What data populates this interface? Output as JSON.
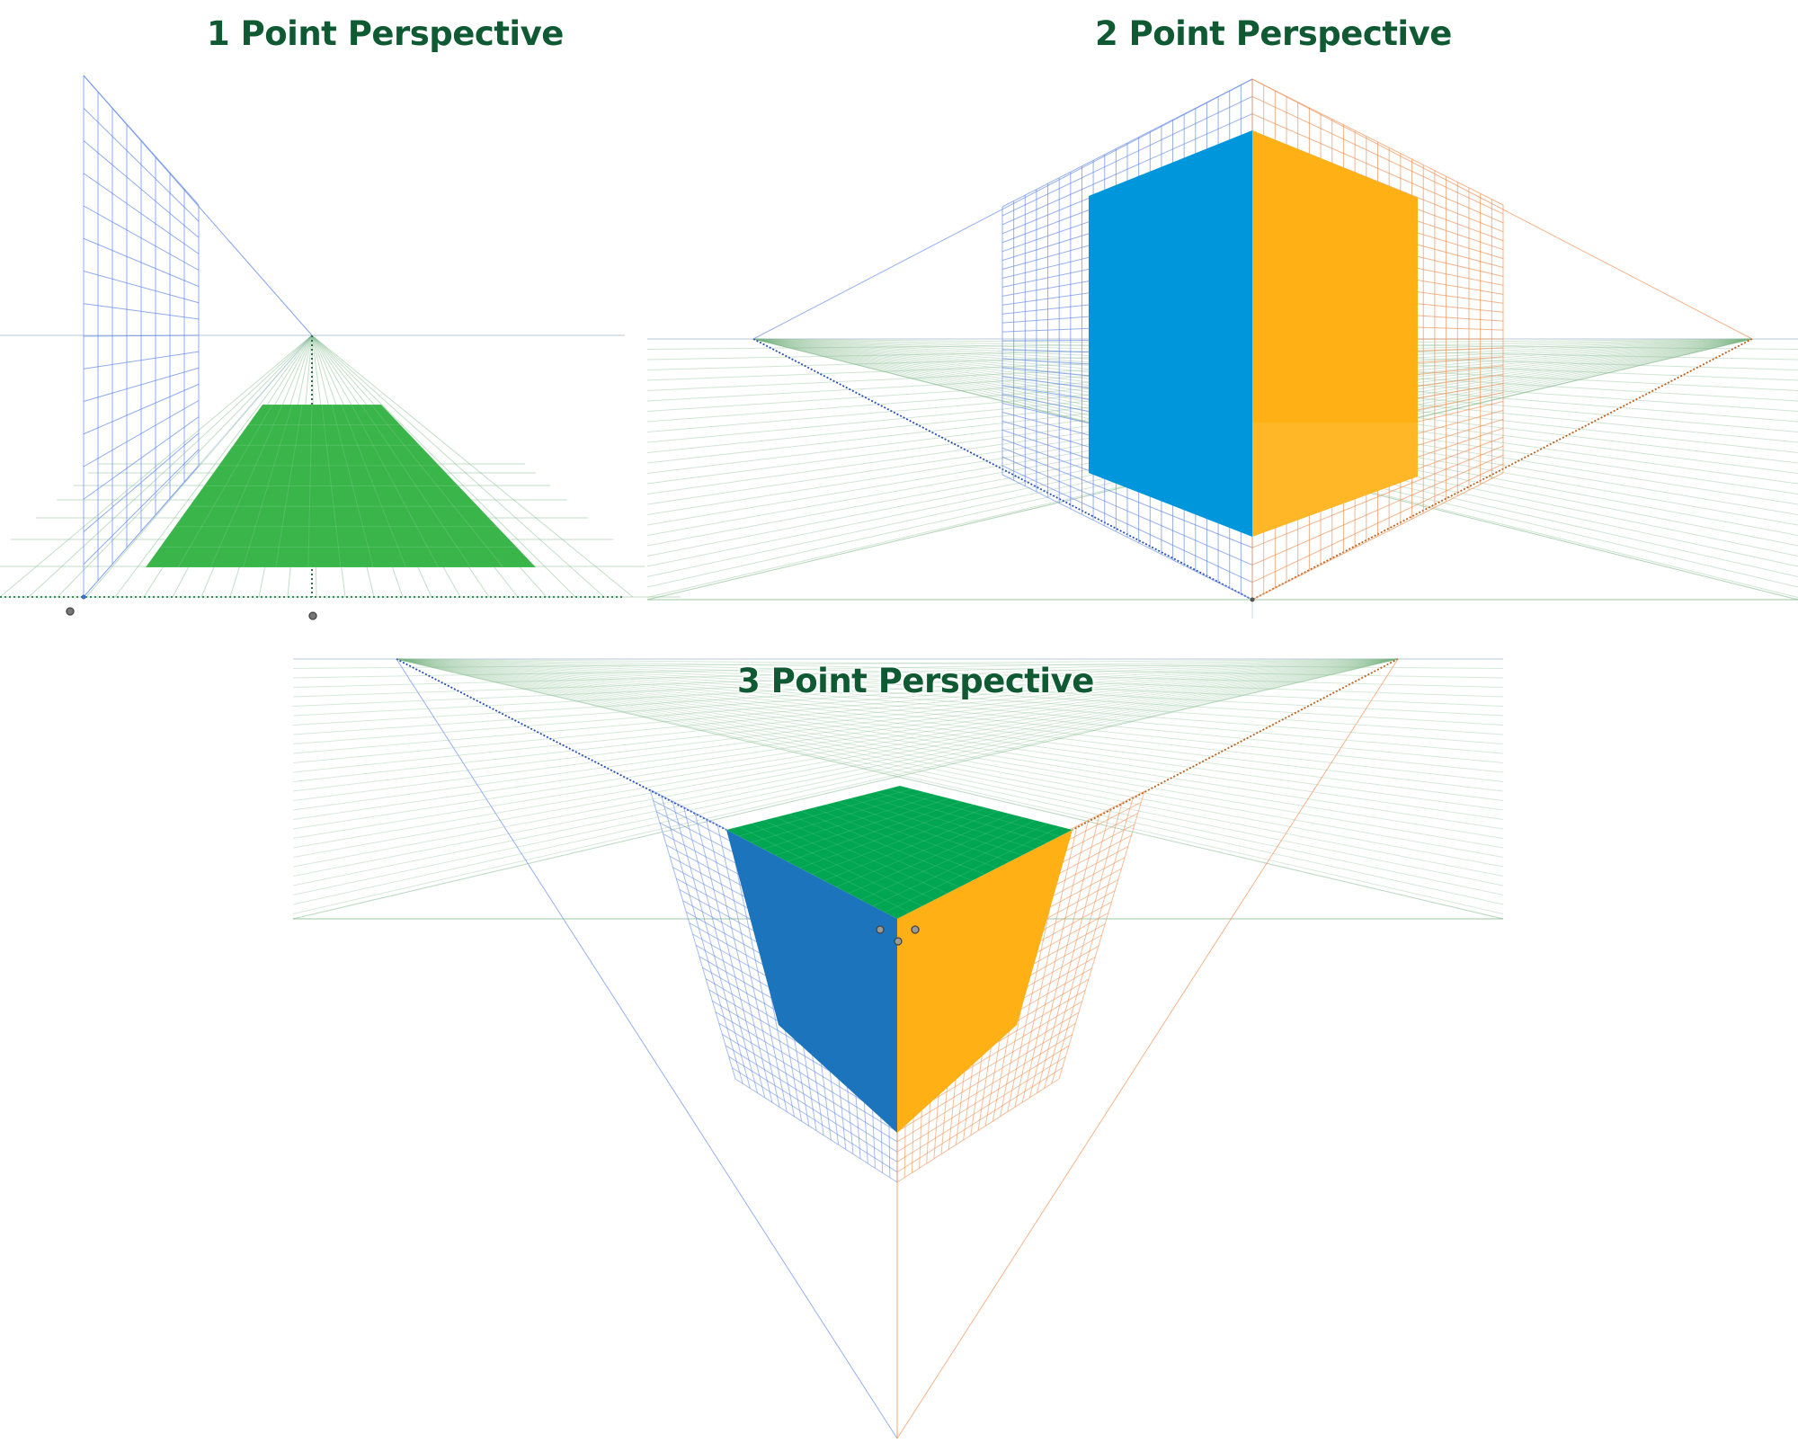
{
  "titles": {
    "one_point": "1 Point Perspective",
    "two_point": "2 Point Perspective",
    "three_point": "3 Point Perspective"
  },
  "colors": {
    "title": "#0f5a33",
    "blue_grid": "#6a8fe8",
    "orange_grid": "#f0945a",
    "green_grid": "#7bb584",
    "horizon": "#c8d4dc",
    "floor_green": "#39b54a",
    "cube_blue_2p": "#0096dc",
    "cube_orange": "#ffb015",
    "cube_blue_3p": "#1c75bc",
    "cube_green_top": "#00a651"
  },
  "icons": {
    "vanishing_point_handle": "circle-handle-icon"
  }
}
